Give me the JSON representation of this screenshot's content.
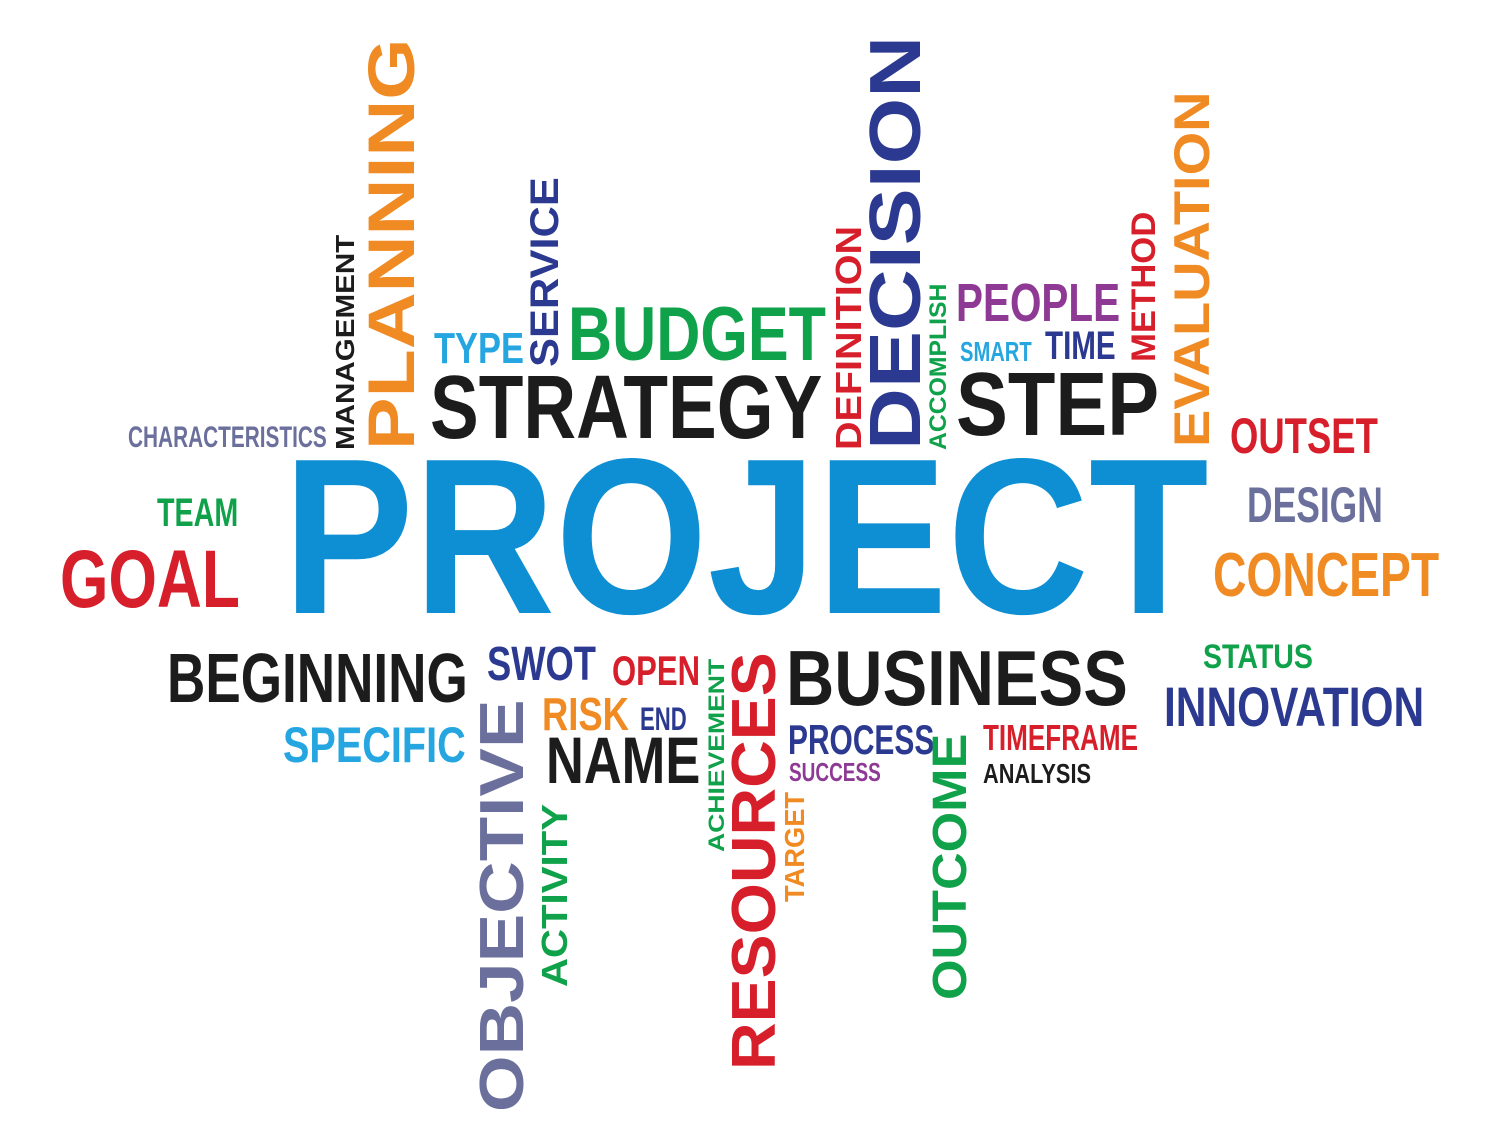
{
  "colors": {
    "blue": "#0e8ed3",
    "navy": "#2b3990",
    "orange": "#f08a22",
    "red": "#d71f2b",
    "green": "#10a24a",
    "purple": "#8e3a95",
    "grayblue": "#6b6f9c",
    "black": "#1c1c1c",
    "cyan": "#26a6e0"
  },
  "words": {
    "project": "PROJECT",
    "planning": "PLANNING",
    "management": "MANAGEMENT",
    "characteristics": "CHARACTERISTICS",
    "type": "TYPE",
    "service": "SERVICE",
    "budget": "BUDGET",
    "strategy": "STRATEGY",
    "definition": "DEFINITION",
    "decision": "DECISION",
    "accomplish": "ACCOMPLISH",
    "people": "PEOPLE",
    "smart": "SMART",
    "time": "TIME",
    "method": "METHOD",
    "evaluation": "EVALUATION",
    "step": "STEP",
    "outset": "OUTSET",
    "design": "DESIGN",
    "concept": "CONCEPT",
    "team": "TEAM",
    "goal": "GOAL",
    "beginning": "BEGINNING",
    "specific": "SPECIFIC",
    "swot": "SWOT",
    "open": "OPEN",
    "risk": "RISK",
    "end": "END",
    "name": "NAME",
    "objective": "OBJECTIVE",
    "activity": "ACTIVITY",
    "achievement": "ACHIEVEMENT",
    "resources": "RESOURCES",
    "target": "TARGET",
    "business": "BUSINESS",
    "process": "PROCESS",
    "success": "SUCCESS",
    "timeframe": "TIMEFRAME",
    "analysis": "ANALYSIS",
    "outcome": "OUTCOME",
    "status": "STATUS",
    "innovation": "INNOVATION"
  }
}
